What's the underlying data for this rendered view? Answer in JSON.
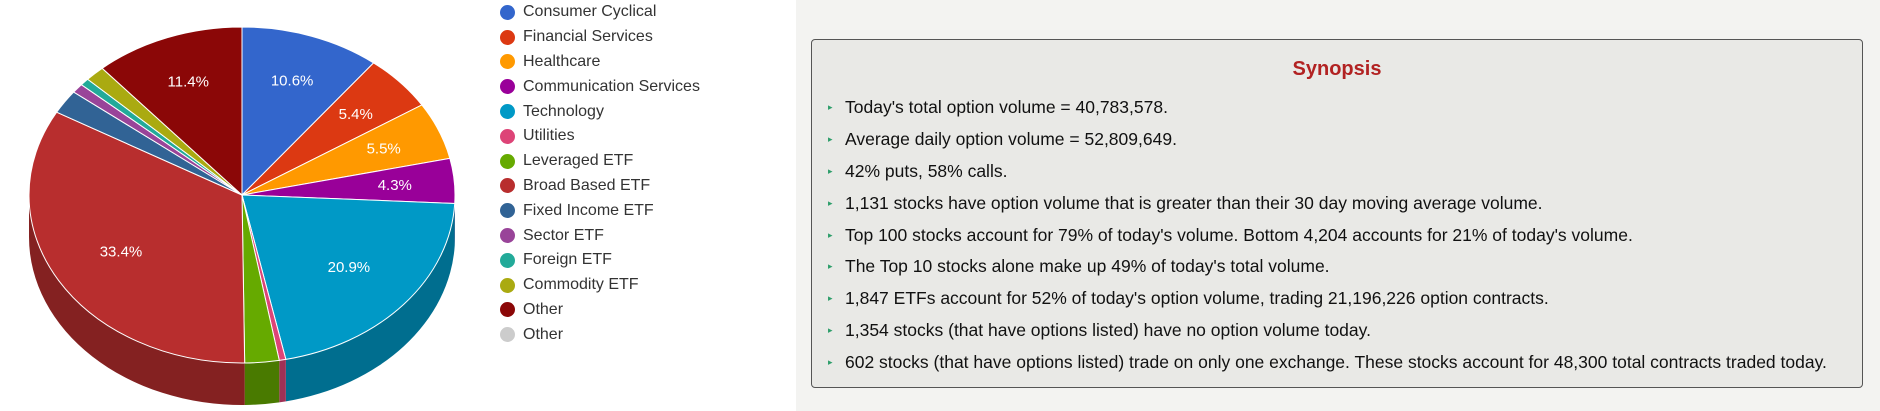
{
  "chart_data": {
    "type": "pie",
    "style": "3d",
    "legend_position": "right",
    "slices": [
      {
        "name": "Consumer Cyclical",
        "value": 10.6,
        "label": "10.6%",
        "color": "#3366cc"
      },
      {
        "name": "Financial Services",
        "value": 5.4,
        "label": "5.4%",
        "color": "#dc3912"
      },
      {
        "name": "Healthcare",
        "value": 5.5,
        "label": "5.5%",
        "color": "#ff9900"
      },
      {
        "name": "Communication Services",
        "value": 4.3,
        "label": "4.3%",
        "color": "#990099"
      },
      {
        "name": "Technology",
        "value": 20.9,
        "label": "20.9%",
        "color": "#0099c6"
      },
      {
        "name": "Utilities",
        "value": 0.5,
        "label": "",
        "color": "#dd4477"
      },
      {
        "name": "Leveraged ETF",
        "value": 2.6,
        "label": "",
        "color": "#66aa00"
      },
      {
        "name": "Broad Based ETF",
        "value": 33.4,
        "label": "33.4%",
        "color": "#b82e2e"
      },
      {
        "name": "Fixed Income ETF",
        "value": 2.3,
        "label": "",
        "color": "#316395"
      },
      {
        "name": "Sector ETF",
        "value": 0.9,
        "label": "",
        "color": "#994499"
      },
      {
        "name": "Foreign ETF",
        "value": 0.7,
        "label": "",
        "color": "#22aa99"
      },
      {
        "name": "Commodity ETF",
        "value": 1.5,
        "label": "",
        "color": "#aaaa11"
      },
      {
        "name": "Other",
        "value": 11.4,
        "label": "11.4%",
        "color": "#8b0707"
      },
      {
        "name": "Other",
        "value": 0,
        "label": "",
        "color": "#cccccc"
      }
    ]
  },
  "synopsis": {
    "title": "Synopsis",
    "items": [
      "Today's total option volume = 40,783,578.",
      "Average daily option volume = 52,809,649.",
      "42% puts, 58% calls.",
      "1,131 stocks have option volume that is greater than their 30 day moving average volume.",
      "Top 100 stocks account for 79% of today's volume. Bottom 4,204 accounts for 21% of today's volume.",
      "The Top 10 stocks alone make up 49% of today's total volume.",
      "1,847 ETFs account for 52% of today's option volume, trading 21,196,226 option contracts.",
      "1,354 stocks (that have options listed) have no option volume today.",
      "602 stocks (that have options listed) trade on only one exchange. These stocks account for 48,300 total contracts traded today."
    ]
  }
}
